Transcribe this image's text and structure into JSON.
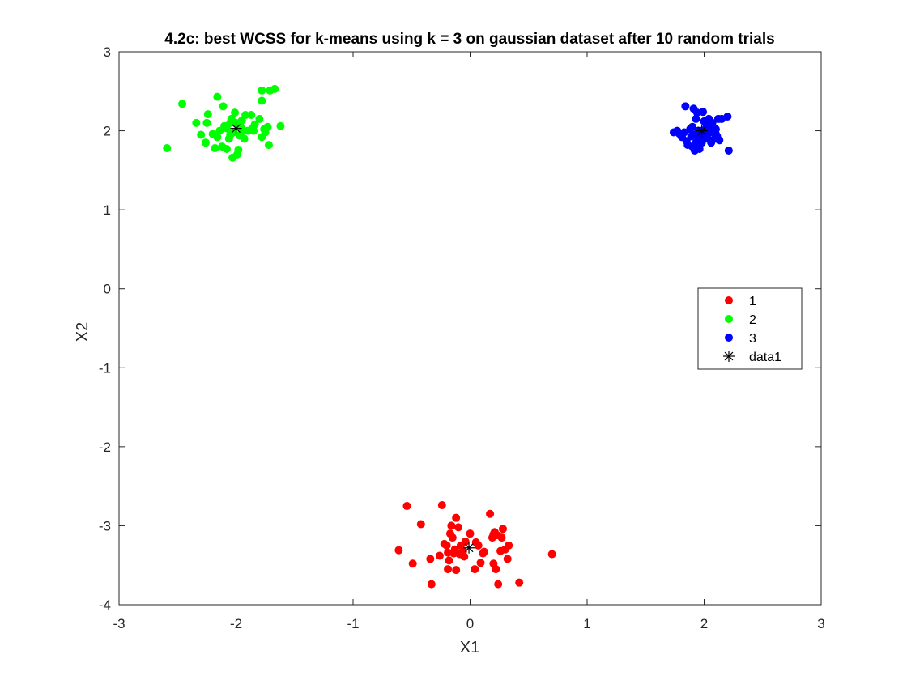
{
  "chart_data": {
    "type": "scatter",
    "title": "4.2c: best WCSS for k-means using k = 3 on gaussian dataset after 10 random trials",
    "xlabel": "X1",
    "ylabel": "X2",
    "xlim": [
      -3,
      3
    ],
    "ylim": [
      -4,
      3
    ],
    "xticks": [
      "-3",
      "-2",
      "-1",
      "0",
      "1",
      "2",
      "3"
    ],
    "yticks": [
      "-4",
      "-3",
      "-2",
      "-1",
      "0",
      "1",
      "2",
      "3"
    ],
    "grid": false,
    "legend_position": "right",
    "series": [
      {
        "name": "1",
        "color": "#ff0000",
        "marker": "filled-circle",
        "points": [
          [
            -0.54,
            -2.75
          ],
          [
            -0.24,
            -2.74
          ],
          [
            -0.42,
            -2.98
          ],
          [
            -0.61,
            -3.31
          ],
          [
            -0.49,
            -3.48
          ],
          [
            -0.34,
            -3.42
          ],
          [
            -0.33,
            -3.74
          ],
          [
            -0.26,
            -3.38
          ],
          [
            -0.22,
            -3.23
          ],
          [
            -0.19,
            -3.34
          ],
          [
            -0.18,
            -3.44
          ],
          [
            -0.19,
            -3.55
          ],
          [
            -0.17,
            -3.1
          ],
          [
            -0.16,
            -3.0
          ],
          [
            -0.15,
            -3.15
          ],
          [
            -0.13,
            -3.3
          ],
          [
            -0.12,
            -3.56
          ],
          [
            -0.12,
            -2.9
          ],
          [
            -0.1,
            -3.02
          ],
          [
            -0.09,
            -3.36
          ],
          [
            -0.08,
            -3.25
          ],
          [
            -0.06,
            -3.32
          ],
          [
            -0.04,
            -3.2
          ],
          [
            0.0,
            -3.1
          ],
          [
            0.04,
            -3.55
          ],
          [
            0.05,
            -3.21
          ],
          [
            0.09,
            -3.47
          ],
          [
            0.11,
            -3.35
          ],
          [
            0.17,
            -2.85
          ],
          [
            0.19,
            -3.15
          ],
          [
            0.2,
            -3.48
          ],
          [
            0.21,
            -3.08
          ],
          [
            0.22,
            -3.55
          ],
          [
            0.23,
            -3.12
          ],
          [
            0.24,
            -3.74
          ],
          [
            0.26,
            -3.32
          ],
          [
            0.27,
            -3.15
          ],
          [
            0.28,
            -3.04
          ],
          [
            0.3,
            -3.3
          ],
          [
            0.32,
            -3.42
          ],
          [
            0.33,
            -3.25
          ],
          [
            0.42,
            -3.72
          ],
          [
            0.7,
            -3.36
          ],
          [
            -0.14,
            -3.35
          ],
          [
            0.12,
            -3.33
          ],
          [
            -0.05,
            -3.39
          ],
          [
            0.2,
            -3.11
          ],
          [
            -0.2,
            -3.25
          ],
          [
            0.07,
            -3.25
          ]
        ]
      },
      {
        "name": "2",
        "color": "#00ff00",
        "marker": "filled-circle",
        "points": [
          [
            -2.59,
            1.78
          ],
          [
            -2.46,
            2.34
          ],
          [
            -2.34,
            2.1
          ],
          [
            -2.3,
            1.95
          ],
          [
            -2.26,
            1.85
          ],
          [
            -2.24,
            2.21
          ],
          [
            -2.2,
            1.96
          ],
          [
            -2.18,
            1.78
          ],
          [
            -2.16,
            1.92
          ],
          [
            -2.16,
            2.43
          ],
          [
            -2.14,
            2.0
          ],
          [
            -2.12,
            1.8
          ],
          [
            -2.11,
            2.31
          ],
          [
            -2.1,
            2.06
          ],
          [
            -2.08,
            1.77
          ],
          [
            -2.06,
            1.9
          ],
          [
            -2.05,
            2.1
          ],
          [
            -2.04,
            2.15
          ],
          [
            -2.03,
            1.66
          ],
          [
            -2.02,
            1.98
          ],
          [
            -2.01,
            2.23
          ],
          [
            -2.0,
            2.1
          ],
          [
            -1.99,
            1.7
          ],
          [
            -1.98,
            1.76
          ],
          [
            -1.97,
            1.94
          ],
          [
            -1.96,
            2.05
          ],
          [
            -1.94,
            2.0
          ],
          [
            -1.93,
            1.9
          ],
          [
            -1.92,
            2.2
          ],
          [
            -1.9,
            2.0
          ],
          [
            -1.87,
            2.2
          ],
          [
            -1.86,
            2.03
          ],
          [
            -1.84,
            2.08
          ],
          [
            -1.8,
            2.15
          ],
          [
            -1.78,
            1.92
          ],
          [
            -1.78,
            2.38
          ],
          [
            -1.78,
            2.51
          ],
          [
            -1.76,
            2.02
          ],
          [
            -1.75,
            1.98
          ],
          [
            -1.73,
            2.05
          ],
          [
            -1.72,
            1.82
          ],
          [
            -1.71,
            2.51
          ],
          [
            -1.67,
            2.53
          ],
          [
            -1.62,
            2.06
          ],
          [
            -2.08,
            2.03
          ],
          [
            -1.95,
            2.13
          ],
          [
            -2.25,
            2.1
          ],
          [
            -1.85,
            2.0
          ],
          [
            -2.05,
            1.95
          ]
        ]
      },
      {
        "name": "3",
        "color": "#0000ff",
        "marker": "filled-circle",
        "points": [
          [
            1.74,
            1.98
          ],
          [
            1.77,
            2.0
          ],
          [
            1.79,
            1.96
          ],
          [
            1.81,
            1.92
          ],
          [
            1.83,
            1.98
          ],
          [
            1.84,
            2.31
          ],
          [
            1.85,
            1.87
          ],
          [
            1.86,
            1.82
          ],
          [
            1.88,
            2.02
          ],
          [
            1.89,
            1.93
          ],
          [
            1.9,
            1.8
          ],
          [
            1.91,
            2.28
          ],
          [
            1.92,
            1.75
          ],
          [
            1.92,
            1.95
          ],
          [
            1.93,
            2.15
          ],
          [
            1.93,
            1.85
          ],
          [
            1.94,
            2.23
          ],
          [
            1.95,
            2.0
          ],
          [
            1.95,
            1.9
          ],
          [
            1.96,
            1.77
          ],
          [
            1.97,
            2.0
          ],
          [
            1.98,
            1.85
          ],
          [
            1.99,
            2.24
          ],
          [
            2.0,
            1.96
          ],
          [
            2.01,
            1.92
          ],
          [
            2.02,
            2.05
          ],
          [
            2.03,
            1.9
          ],
          [
            2.04,
            2.15
          ],
          [
            2.05,
            1.98
          ],
          [
            2.06,
            1.85
          ],
          [
            2.07,
            2.1
          ],
          [
            2.08,
            2.0
          ],
          [
            2.09,
            1.9
          ],
          [
            2.1,
            2.02
          ],
          [
            2.11,
            1.93
          ],
          [
            2.12,
            2.15
          ],
          [
            2.13,
            1.88
          ],
          [
            2.15,
            2.15
          ],
          [
            2.2,
            2.18
          ],
          [
            2.21,
            1.75
          ],
          [
            1.98,
            1.98
          ],
          [
            2.05,
            2.08
          ],
          [
            1.9,
            2.05
          ],
          [
            2.0,
            2.12
          ],
          [
            2.1,
            1.96
          ]
        ]
      },
      {
        "name": "data1",
        "color": "#000000",
        "marker": "asterisk",
        "points": [
          [
            -0.01,
            -3.28
          ],
          [
            -2.0,
            2.03
          ],
          [
            1.98,
            2.0
          ]
        ]
      }
    ]
  }
}
